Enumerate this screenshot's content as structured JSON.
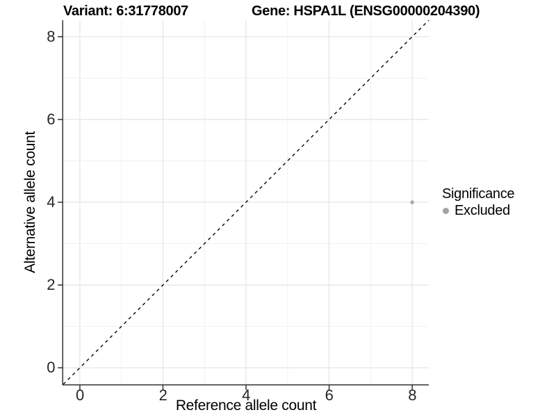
{
  "header": {
    "variant_title": "Variant: 6:31778007",
    "gene_title": "Gene: HSPA1L (ENSG00000204390)"
  },
  "legend": {
    "title": "Significance",
    "items": [
      {
        "label": "Excluded",
        "color": "#a3a3a3"
      }
    ]
  },
  "style": {
    "background": "#ffffff",
    "axis_line_color": "#333333",
    "tick_label_color": "#262626",
    "grid_major_color": "#e4e4e4",
    "grid_minor_color": "#f1f1f1",
    "reference_line_color": "#000000",
    "point_color": "#a9a9a9"
  },
  "chart_data": {
    "type": "scatter",
    "title": "Variant: 6:31778007 — Gene: HSPA1L (ENSG00000204390)",
    "xlabel": "Reference allele count",
    "ylabel": "Alternative allele count",
    "xlim": [
      -0.4,
      8.4
    ],
    "ylim": [
      -0.4,
      8.4
    ],
    "x_ticks": [
      0,
      2,
      4,
      6,
      8
    ],
    "y_ticks": [
      0,
      2,
      4,
      6,
      8
    ],
    "x_minor_ticks": [
      1,
      3,
      5,
      7
    ],
    "y_minor_ticks": [
      1,
      3,
      5,
      7
    ],
    "grid": "on",
    "legend_position": "right",
    "series": [
      {
        "name": "Excluded",
        "color": "#a9a9a9",
        "point_radius": 2.8,
        "points": [
          [
            8,
            4
          ]
        ]
      }
    ],
    "reference_line": {
      "style": "dashed",
      "color": "#000000",
      "from": [
        -0.4,
        -0.4
      ],
      "to": [
        8.4,
        8.4
      ]
    }
  }
}
